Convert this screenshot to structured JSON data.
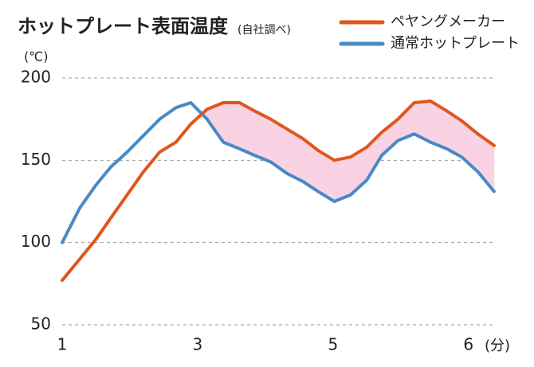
{
  "chart_data": {
    "type": "line",
    "title": "ホットプレート表面温度",
    "subtitle": "(自社調べ)",
    "y_label": "(℃)",
    "x_label": "(分)",
    "x": [
      0,
      0.13,
      0.25,
      0.36,
      0.48,
      0.6,
      0.72,
      0.84,
      0.95,
      1.07,
      1.19,
      1.31,
      1.42,
      1.54,
      1.66,
      1.78,
      1.89,
      2.01,
      2.13,
      2.25,
      2.36,
      2.48,
      2.6,
      2.72,
      2.84,
      2.95,
      3.07,
      3.19
    ],
    "series": [
      {
        "name": "ペヤングメーカー",
        "color": "#e0561f",
        "values": [
          77,
          90,
          102,
          115,
          129,
          143,
          155,
          161,
          172,
          181,
          185,
          185,
          180,
          175,
          169,
          163,
          156,
          150,
          152,
          158,
          167,
          175,
          185,
          186,
          180,
          174,
          166,
          159
        ]
      },
      {
        "name": "通常ホットプレート",
        "color": "#4a8ac4",
        "values": [
          100,
          121,
          135,
          146,
          155,
          165,
          175,
          182,
          185,
          175,
          161,
          157,
          153,
          149,
          142,
          137,
          131,
          125,
          129,
          138,
          153,
          162,
          166,
          161,
          157,
          152,
          143,
          131
        ]
      }
    ],
    "fill_color": "#f9d3e4",
    "xlim": [
      0,
      3.19
    ],
    "xticks": [
      {
        "value": 0,
        "label": "1"
      },
      {
        "value": 1,
        "label": "3"
      },
      {
        "value": 2,
        "label": "5"
      },
      {
        "value": 3,
        "label": "6"
      }
    ],
    "ylim": [
      50,
      200
    ],
    "yticks": [
      50,
      100,
      150,
      200
    ],
    "grid": true,
    "legend": "top-right"
  }
}
